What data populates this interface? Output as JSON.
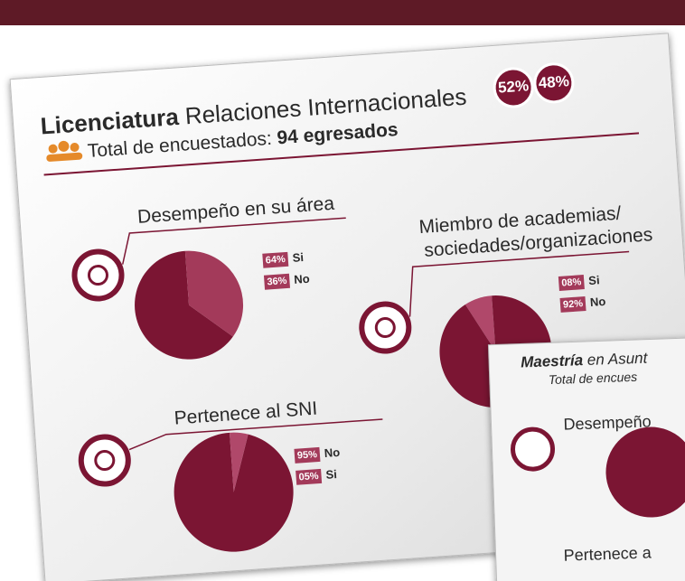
{
  "header": {
    "degree": "Licenciatura",
    "program": "Relaciones Internacionales",
    "respondents_label": "Total de encuestados:",
    "respondents": "94 egresados",
    "female": "52%",
    "male": "48%"
  },
  "chart_data": [
    {
      "type": "pie",
      "title": [
        "Desempeño en su área"
      ],
      "categories": [
        "Si",
        "No"
      ],
      "values": [
        64,
        36
      ],
      "value_labels": [
        "64%",
        "36%"
      ],
      "colors": [
        "#7b1533",
        "#a33a5a"
      ]
    },
    {
      "type": "pie",
      "title": [
        "Miembro de academias/",
        "sociedades/organizaciones"
      ],
      "categories": [
        "Si",
        "No"
      ],
      "values": [
        8,
        92
      ],
      "value_labels": [
        "08%",
        "92%"
      ],
      "colors": [
        "#b0486a",
        "#7b1533"
      ]
    },
    {
      "type": "pie",
      "title": [
        "Pertenece al SNI"
      ],
      "categories": [
        "No",
        "Si"
      ],
      "values": [
        95,
        5
      ],
      "value_labels": [
        "95%",
        "05%"
      ],
      "colors": [
        "#7b1533",
        "#b0486a"
      ]
    }
  ],
  "second_card": {
    "degree": "Maestría",
    "program": "en Asunt",
    "respondents_label": "Total de encues",
    "section1": "Desempeño",
    "section2": "Pertenece a"
  }
}
